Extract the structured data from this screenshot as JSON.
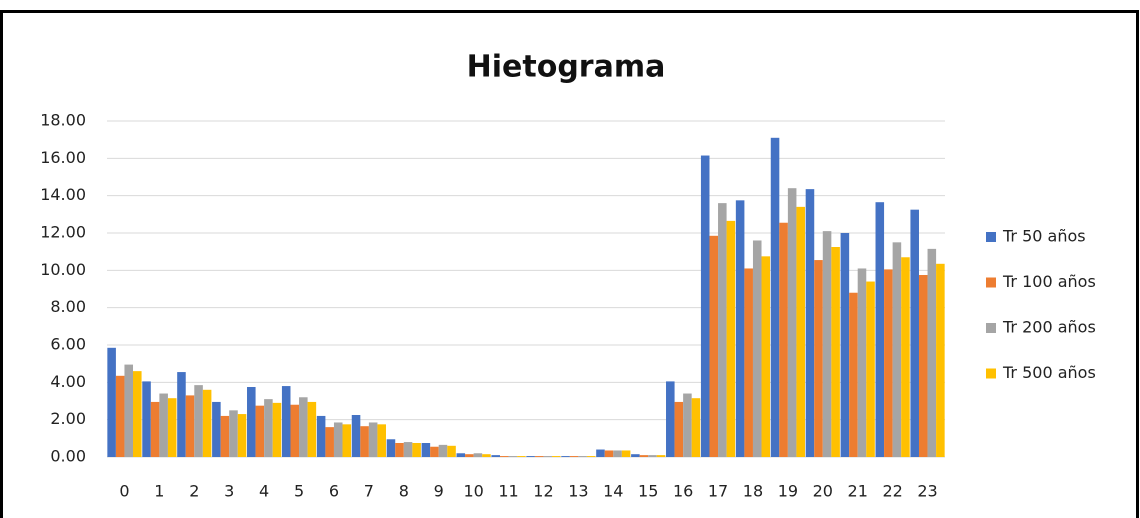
{
  "chart_data": {
    "type": "bar",
    "title": "Hietograma",
    "categories": [
      "0",
      "1",
      "2",
      "3",
      "4",
      "5",
      "6",
      "7",
      "8",
      "9",
      "10",
      "11",
      "12",
      "13",
      "14",
      "15",
      "16",
      "17",
      "18",
      "19",
      "20",
      "21",
      "22",
      "23"
    ],
    "series": [
      {
        "name": "Tr 50 años",
        "color": "#4472c4",
        "values": [
          5.85,
          4.05,
          4.55,
          2.95,
          3.75,
          3.8,
          2.2,
          2.25,
          0.95,
          0.75,
          0.2,
          0.1,
          0.05,
          0.05,
          0.4,
          0.15,
          4.05,
          16.15,
          13.75,
          17.1,
          14.35,
          12.0,
          13.65,
          13.25
        ]
      },
      {
        "name": "Tr 100 años",
        "color": "#ed7d31",
        "values": [
          4.35,
          2.95,
          3.3,
          2.2,
          2.75,
          2.8,
          1.6,
          1.65,
          0.75,
          0.55,
          0.15,
          0.05,
          0.05,
          0.05,
          0.35,
          0.1,
          2.95,
          11.85,
          10.1,
          12.55,
          10.55,
          8.8,
          10.05,
          9.75
        ]
      },
      {
        "name": "Tr 200 años",
        "color": "#a5a5a5",
        "values": [
          4.95,
          3.4,
          3.85,
          2.5,
          3.1,
          3.2,
          1.85,
          1.85,
          0.8,
          0.65,
          0.2,
          0.05,
          0.05,
          0.05,
          0.35,
          0.1,
          3.4,
          13.6,
          11.6,
          14.4,
          12.1,
          10.1,
          11.5,
          11.15
        ]
      },
      {
        "name": "Tr 500 años",
        "color": "#ffc000",
        "values": [
          4.6,
          3.15,
          3.6,
          2.3,
          2.9,
          2.95,
          1.75,
          1.75,
          0.75,
          0.6,
          0.15,
          0.05,
          0.05,
          0.05,
          0.35,
          0.1,
          3.15,
          12.65,
          10.75,
          13.4,
          11.25,
          9.4,
          10.7,
          10.35
        ]
      }
    ],
    "ylim": [
      0,
      18
    ],
    "yticks": [
      {
        "value": 0,
        "label": "0.00"
      },
      {
        "value": 2,
        "label": "2.00"
      },
      {
        "value": 4,
        "label": "4.00"
      },
      {
        "value": 6,
        "label": "6.00"
      },
      {
        "value": 8,
        "label": "8.00"
      },
      {
        "value": 10,
        "label": "10.00"
      },
      {
        "value": 12,
        "label": "12.00"
      },
      {
        "value": 14,
        "label": "14.00"
      },
      {
        "value": 16,
        "label": "16.00"
      },
      {
        "value": 18,
        "label": "18.00"
      }
    ],
    "grid": true,
    "legend": "right"
  }
}
